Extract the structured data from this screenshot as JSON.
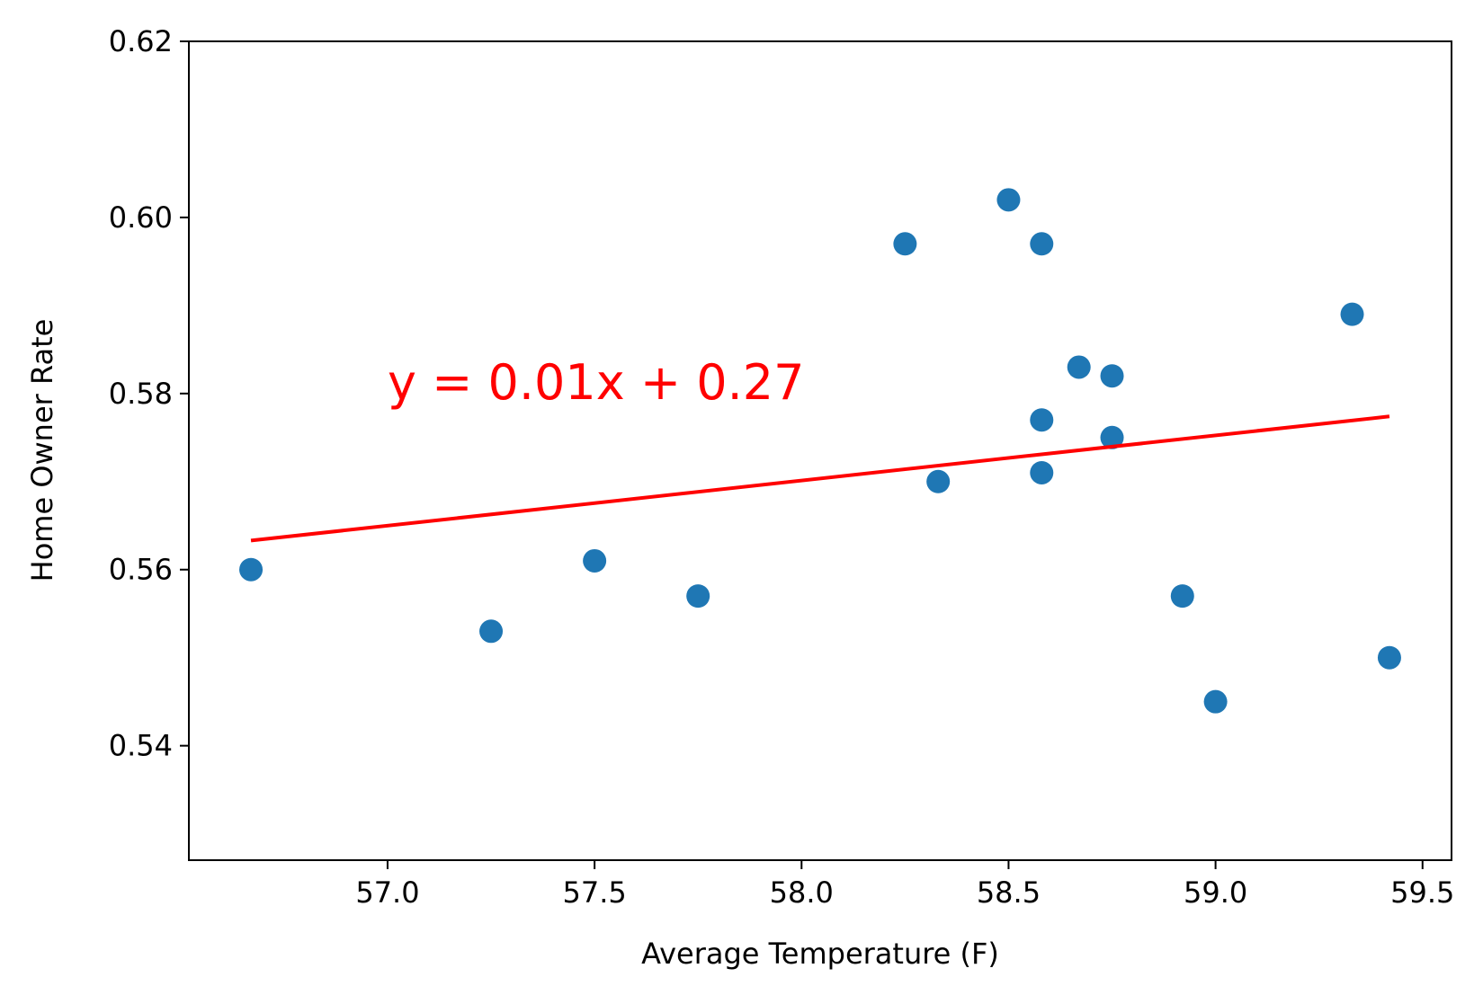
{
  "chart_data": {
    "type": "scatter",
    "title": "",
    "xlabel": "Average Temperature (F)",
    "ylabel": "Home Owner Rate",
    "xlim": [
      56.52,
      59.57
    ],
    "ylim": [
      0.527,
      0.62
    ],
    "xticks": [
      57.0,
      57.5,
      58.0,
      58.5,
      59.0,
      59.5
    ],
    "xtick_labels": [
      "57.0",
      "57.5",
      "58.0",
      "58.5",
      "59.0",
      "59.5"
    ],
    "yticks": [
      0.54,
      0.56,
      0.58,
      0.6,
      0.62
    ],
    "ytick_labels": [
      "0.54",
      "0.56",
      "0.58",
      "0.60",
      "0.62"
    ],
    "grid": false,
    "marker_color": "#1f77b4",
    "points": [
      {
        "x": 56.67,
        "y": 0.56
      },
      {
        "x": 57.25,
        "y": 0.553
      },
      {
        "x": 57.5,
        "y": 0.561
      },
      {
        "x": 57.75,
        "y": 0.557
      },
      {
        "x": 58.25,
        "y": 0.597
      },
      {
        "x": 58.33,
        "y": 0.57
      },
      {
        "x": 58.5,
        "y": 0.602
      },
      {
        "x": 58.58,
        "y": 0.597
      },
      {
        "x": 58.58,
        "y": 0.577
      },
      {
        "x": 58.58,
        "y": 0.571
      },
      {
        "x": 58.67,
        "y": 0.583
      },
      {
        "x": 58.75,
        "y": 0.582
      },
      {
        "x": 58.75,
        "y": 0.575
      },
      {
        "x": 58.92,
        "y": 0.557
      },
      {
        "x": 59.0,
        "y": 0.545
      },
      {
        "x": 59.33,
        "y": 0.589
      },
      {
        "x": 59.42,
        "y": 0.55
      }
    ],
    "regression_line": {
      "color": "#ff0000",
      "x": [
        56.67,
        59.42
      ],
      "y": [
        0.5633,
        0.5774
      ]
    },
    "annotation": {
      "text": "y = 0.01x + 0.27",
      "x": 57.0,
      "y": 0.58,
      "color": "#ff0000"
    }
  }
}
